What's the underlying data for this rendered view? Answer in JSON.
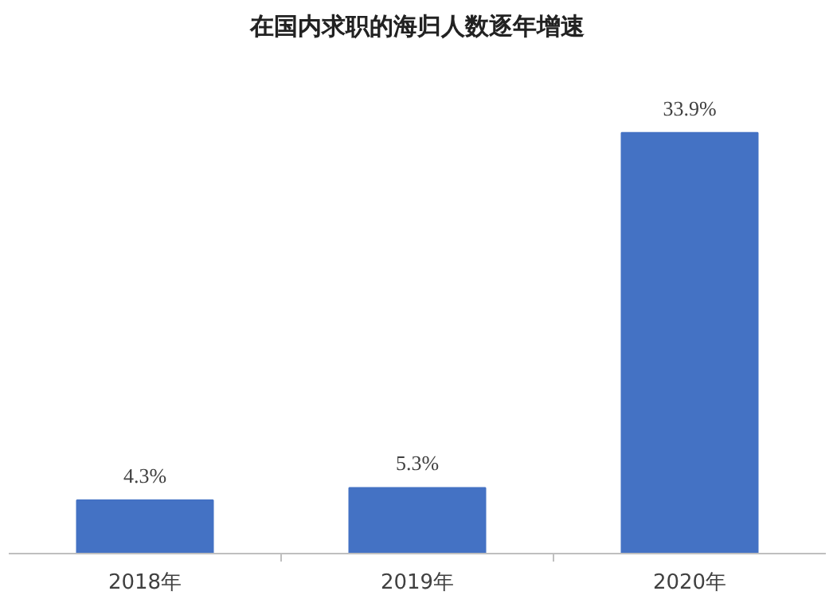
{
  "chart_data": {
    "type": "bar",
    "title": "在国内求职的海归人数逐年增速",
    "categories": [
      "2018年",
      "2019年",
      "2020年"
    ],
    "values": [
      4.3,
      5.3,
      33.9
    ],
    "value_labels": [
      "4.3%",
      "5.3%",
      "33.9%"
    ],
    "color": "#4472c4",
    "grid": false
  }
}
